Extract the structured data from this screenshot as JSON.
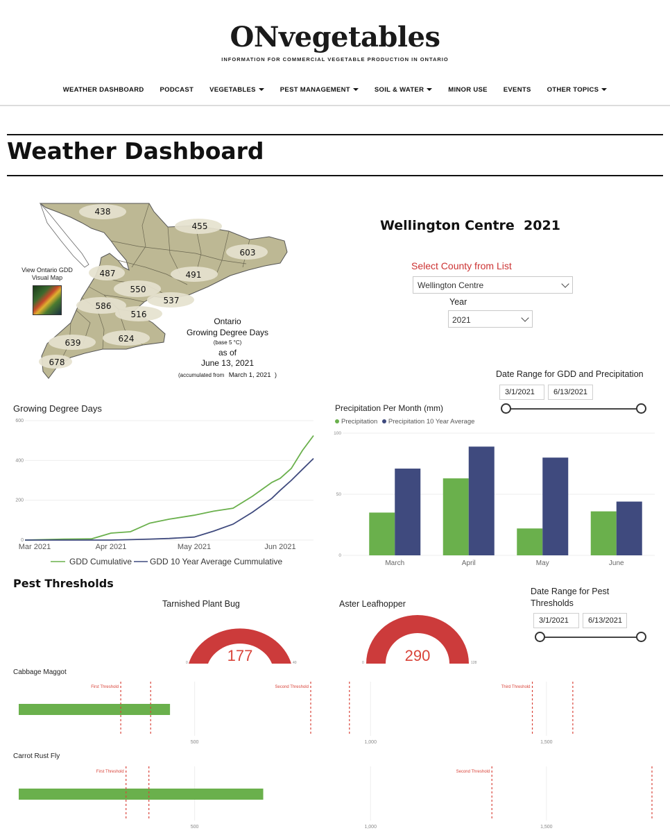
{
  "site": {
    "title": "ONvegetables",
    "tagline": "INFORMATION FOR COMMERCIAL VEGETABLE PRODUCTION IN ONTARIO"
  },
  "nav": {
    "items": [
      {
        "label": "WEATHER DASHBOARD",
        "dropdown": false
      },
      {
        "label": "PODCAST",
        "dropdown": false
      },
      {
        "label": "VEGETABLES",
        "dropdown": true
      },
      {
        "label": "PEST MANAGEMENT",
        "dropdown": true
      },
      {
        "label": "SOIL & WATER",
        "dropdown": true
      },
      {
        "label": "MINOR USE",
        "dropdown": false
      },
      {
        "label": "EVENTS",
        "dropdown": false
      },
      {
        "label": "OTHER TOPICS",
        "dropdown": true
      }
    ]
  },
  "page": {
    "title": "Weather Dashboard"
  },
  "map": {
    "link_label": "View Ontario GDD Visual Map",
    "regions": [
      {
        "label": "438"
      },
      {
        "label": "455"
      },
      {
        "label": "603"
      },
      {
        "label": "487"
      },
      {
        "label": "491"
      },
      {
        "label": "550"
      },
      {
        "label": "537"
      },
      {
        "label": "586"
      },
      {
        "label": "516"
      },
      {
        "label": "639"
      },
      {
        "label": "624"
      },
      {
        "label": "678"
      }
    ],
    "caption": {
      "line1": "Ontario",
      "line2": "Growing Degree Days",
      "line3": "(base 5 °C)",
      "line4": "as of",
      "line5": "June 13, 2021",
      "line6_prefix": "(accumulated from",
      "line6_date": "March 1, 2021",
      "line6_suffix": ")"
    }
  },
  "station": {
    "title": "Wellington Centre  2021",
    "county_label": "Select County from List",
    "county_value": "Wellington Centre",
    "year_label": "Year",
    "year_value": "2021"
  },
  "gdd_range": {
    "label": "Date Range for GDD and Precipitation",
    "start": "3/1/2021",
    "end": "6/13/2021"
  },
  "pest_range": {
    "label": "Date Range for Pest Thresholds",
    "start": "3/1/2021",
    "end": "6/13/2021"
  },
  "colors": {
    "green": "#6ab04c",
    "navy": "#3f4a7e",
    "red": "#cc3b3b",
    "threshold": "#d9443a",
    "map_land": "#bdb894",
    "map_bubble": "#e6e2cf"
  },
  "chart_data": [
    {
      "type": "line",
      "title": "Growing Degree Days",
      "xlabel": "",
      "ylabel": "",
      "ylim": [
        0,
        600
      ],
      "yticks": [
        "0",
        "200",
        "400",
        "600"
      ],
      "xticks": [
        "Mar 2021",
        "Apr 2021",
        "May 2021",
        "Jun 2021"
      ],
      "x": [
        "2021-03-01",
        "2021-03-15",
        "2021-03-25",
        "2021-04-01",
        "2021-04-08",
        "2021-04-15",
        "2021-04-22",
        "2021-05-01",
        "2021-05-08",
        "2021-05-15",
        "2021-05-22",
        "2021-05-29",
        "2021-06-01",
        "2021-06-05",
        "2021-06-09",
        "2021-06-13"
      ],
      "series": [
        {
          "name": "GDD Cumulative",
          "values": [
            0,
            5,
            6,
            35,
            42,
            85,
            105,
            125,
            145,
            160,
            220,
            290,
            310,
            360,
            450,
            525
          ]
        },
        {
          "name": "GDD 10 Year Average Cummulative",
          "values": [
            0,
            0,
            0,
            0,
            2,
            5,
            8,
            15,
            45,
            80,
            140,
            210,
            250,
            300,
            355,
            410
          ]
        }
      ],
      "legend": "bottom"
    },
    {
      "type": "bar",
      "title": "Precipitation Per Month (mm)",
      "categories": [
        "March",
        "April",
        "May",
        "June"
      ],
      "ylim": [
        0,
        100
      ],
      "yticks": [
        "0",
        "50",
        "100"
      ],
      "series": [
        {
          "name": "Precipitation",
          "values": [
            35,
            63,
            22,
            36
          ]
        },
        {
          "name": "Precipitation 10 Year Average",
          "values": [
            71,
            89,
            80,
            44
          ]
        }
      ],
      "legend": "top-left"
    },
    {
      "type": "gauge",
      "title": "Tarnished Plant Bug",
      "value": "177",
      "min": "0",
      "max": "40",
      "fill": 1.0
    },
    {
      "type": "gauge",
      "title": "Aster Leafhopper",
      "value": "290",
      "min": "0",
      "max": "128",
      "fill": 1.0
    },
    {
      "type": "bar",
      "title": "Cabbage Maggot",
      "orientation": "horizontal",
      "value": 430,
      "xlim": [
        0,
        1800
      ],
      "xticks": [
        {
          "v": 500,
          "label": "500"
        },
        {
          "v": 1000,
          "label": "1,000"
        },
        {
          "v": 1500,
          "label": "1,500"
        }
      ],
      "thresholds": [
        {
          "v": 290,
          "label": "First Threshold"
        },
        {
          "v": 375,
          "label": ""
        },
        {
          "v": 830,
          "label": "Second Threshold"
        },
        {
          "v": 940,
          "label": ""
        },
        {
          "v": 1460,
          "label": "Third Threshold"
        },
        {
          "v": 1575,
          "label": ""
        }
      ]
    },
    {
      "type": "bar",
      "title": "Carrot Rust Fly",
      "orientation": "horizontal",
      "value": 695,
      "xlim": [
        0,
        1800
      ],
      "xticks": [
        {
          "v": 500,
          "label": "500"
        },
        {
          "v": 1000,
          "label": "1,000"
        },
        {
          "v": 1500,
          "label": "1,500"
        }
      ],
      "thresholds": [
        {
          "v": 305,
          "label": "First Threshold"
        },
        {
          "v": 370,
          "label": ""
        },
        {
          "v": 1345,
          "label": "Second Threshold"
        },
        {
          "v": 1800,
          "label": ""
        }
      ]
    }
  ]
}
